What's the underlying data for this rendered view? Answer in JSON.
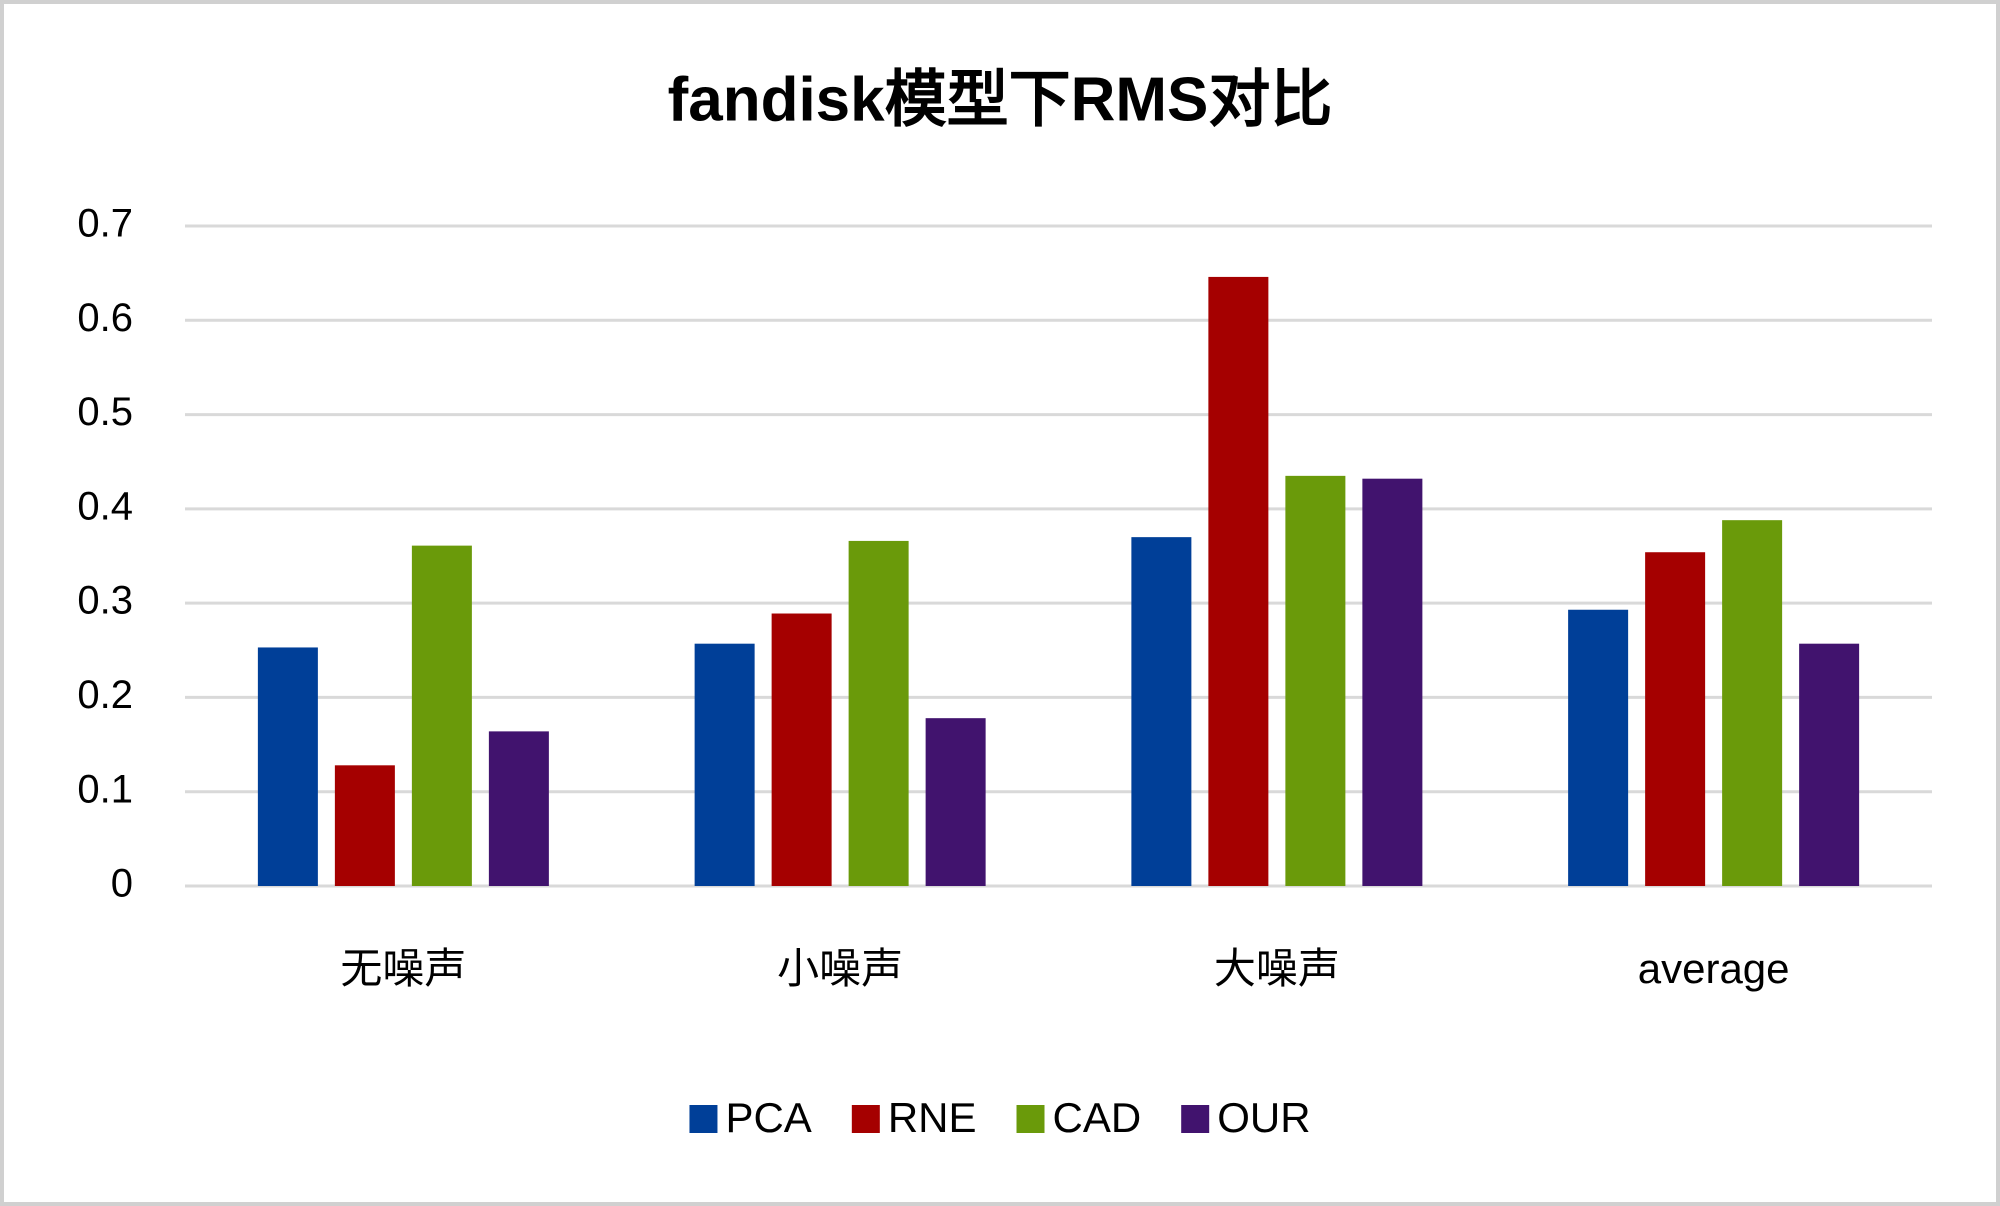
{
  "chart_data": {
    "type": "bar",
    "title": "fandisk模型下RMS对比",
    "categories": [
      "无噪声",
      "小噪声",
      "大噪声",
      "average"
    ],
    "series": [
      {
        "name": "PCA",
        "color": "#003f98",
        "values": [
          0.253,
          0.257,
          0.37,
          0.293
        ]
      },
      {
        "name": "RNE",
        "color": "#a50000",
        "values": [
          0.128,
          0.289,
          0.646,
          0.354
        ]
      },
      {
        "name": "CAD",
        "color": "#6a9a0a",
        "values": [
          0.361,
          0.366,
          0.435,
          0.388
        ]
      },
      {
        "name": "OUR",
        "color": "#41136e",
        "values": [
          0.164,
          0.178,
          0.432,
          0.257
        ]
      }
    ],
    "ylim": [
      0,
      0.7
    ],
    "yticks": [
      0,
      0.1,
      0.2,
      0.3,
      0.4,
      0.5,
      0.6,
      0.7
    ],
    "grid": true,
    "legend": "bottom"
  }
}
